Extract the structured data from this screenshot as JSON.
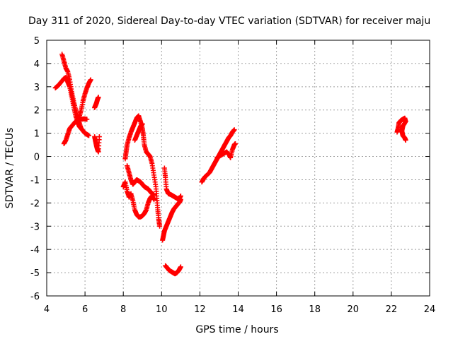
{
  "chart_data": {
    "type": "scatter",
    "title": "Day 311 of 2020, Sidereal Day-to-day VTEC variation (SDTVAR) for receiver maju",
    "xlabel": "GPS time / hours",
    "ylabel": "SDTVAR / TECUs",
    "xlim": [
      4,
      24
    ],
    "ylim": [
      -6,
      5
    ],
    "xticks": [
      4,
      6,
      8,
      10,
      12,
      14,
      16,
      18,
      20,
      22,
      24
    ],
    "yticks": [
      -6,
      -5,
      -4,
      -3,
      -2,
      -1,
      0,
      1,
      2,
      3,
      4,
      5
    ],
    "grid": true,
    "legend": "none",
    "marker": "+",
    "color": "#ff0000",
    "tracks": [
      [
        [
          4.45,
          2.95
        ],
        [
          4.6,
          3.05
        ],
        [
          4.75,
          3.2
        ],
        [
          4.9,
          3.35
        ],
        [
          5.0,
          3.4
        ],
        [
          5.1,
          3.2
        ],
        [
          5.2,
          3.0
        ],
        [
          5.3,
          2.6
        ],
        [
          5.4,
          2.2
        ],
        [
          5.5,
          1.8
        ],
        [
          5.6,
          1.5
        ],
        [
          5.7,
          1.3
        ],
        [
          5.8,
          1.2
        ],
        [
          5.9,
          1.1
        ],
        [
          6.0,
          1.0
        ],
        [
          6.1,
          0.95
        ],
        [
          6.2,
          0.9
        ]
      ],
      [
        [
          4.8,
          4.4
        ],
        [
          4.9,
          4.1
        ],
        [
          5.0,
          3.8
        ],
        [
          5.1,
          3.65
        ],
        [
          5.2,
          3.3
        ],
        [
          5.3,
          2.8
        ],
        [
          5.4,
          2.4
        ],
        [
          5.5,
          2.05
        ],
        [
          5.6,
          1.75
        ],
        [
          5.7,
          1.45
        ],
        [
          5.8,
          1.2
        ]
      ],
      [
        [
          4.9,
          0.55
        ],
        [
          5.0,
          0.7
        ],
        [
          5.1,
          0.95
        ],
        [
          5.2,
          1.2
        ],
        [
          5.35,
          1.35
        ],
        [
          5.5,
          1.5
        ],
        [
          5.65,
          1.55
        ],
        [
          5.8,
          1.6
        ],
        [
          5.95,
          1.62
        ],
        [
          6.1,
          1.6
        ]
      ],
      [
        [
          5.6,
          1.4
        ],
        [
          5.7,
          1.7
        ],
        [
          5.8,
          2.0
        ],
        [
          5.9,
          2.4
        ],
        [
          6.0,
          2.7
        ],
        [
          6.1,
          2.95
        ],
        [
          6.2,
          3.15
        ],
        [
          6.3,
          3.3
        ]
      ],
      [
        [
          6.5,
          2.1
        ],
        [
          6.55,
          2.2
        ],
        [
          6.6,
          2.3
        ],
        [
          6.65,
          2.45
        ],
        [
          6.7,
          2.55
        ]
      ],
      [
        [
          6.5,
          0.85
        ],
        [
          6.55,
          0.65
        ],
        [
          6.6,
          0.45
        ],
        [
          6.65,
          0.3
        ],
        [
          6.7,
          0.2
        ],
        [
          6.75,
          0.85
        ]
      ],
      [
        [
          8.1,
          -0.1
        ],
        [
          8.15,
          0.2
        ],
        [
          8.2,
          0.5
        ],
        [
          8.3,
          0.8
        ],
        [
          8.4,
          1.05
        ],
        [
          8.5,
          1.25
        ],
        [
          8.6,
          1.45
        ],
        [
          8.7,
          1.65
        ],
        [
          8.8,
          1.75
        ],
        [
          8.9,
          1.5
        ],
        [
          9.0,
          1.2
        ],
        [
          9.05,
          0.9
        ],
        [
          9.1,
          0.5
        ],
        [
          9.2,
          0.2
        ],
        [
          9.3,
          0.1
        ],
        [
          9.4,
          0.0
        ],
        [
          9.5,
          -0.3
        ],
        [
          9.6,
          -0.8
        ],
        [
          9.7,
          -1.3
        ],
        [
          9.75,
          -1.8
        ],
        [
          9.8,
          -2.3
        ],
        [
          9.85,
          -2.7
        ],
        [
          9.9,
          -3.0
        ]
      ],
      [
        [
          8.2,
          -0.4
        ],
        [
          8.3,
          -0.7
        ],
        [
          8.4,
          -1.0
        ],
        [
          8.5,
          -1.2
        ],
        [
          8.6,
          -1.1
        ],
        [
          8.7,
          -1.0
        ],
        [
          8.8,
          -1.05
        ],
        [
          8.9,
          -1.1
        ],
        [
          9.0,
          -1.2
        ],
        [
          9.1,
          -1.3
        ],
        [
          9.2,
          -1.35
        ],
        [
          9.3,
          -1.4
        ],
        [
          9.4,
          -1.5
        ],
        [
          9.5,
          -1.6
        ],
        [
          9.6,
          -1.65
        ]
      ],
      [
        [
          8.0,
          -1.3
        ],
        [
          8.1,
          -1.1
        ],
        [
          8.2,
          -1.5
        ],
        [
          8.3,
          -1.75
        ],
        [
          8.4,
          -1.6
        ],
        [
          8.5,
          -1.9
        ],
        [
          8.6,
          -2.3
        ],
        [
          8.7,
          -2.5
        ],
        [
          8.8,
          -2.6
        ],
        [
          8.9,
          -2.6
        ],
        [
          9.0,
          -2.55
        ],
        [
          9.1,
          -2.45
        ],
        [
          9.2,
          -2.3
        ],
        [
          9.3,
          -2.0
        ],
        [
          9.4,
          -1.8
        ],
        [
          9.5,
          -1.7
        ],
        [
          9.6,
          -1.85
        ]
      ],
      [
        [
          8.6,
          0.7
        ],
        [
          8.7,
          0.9
        ],
        [
          8.8,
          1.1
        ],
        [
          8.9,
          1.3
        ],
        [
          9.0,
          1.4
        ]
      ],
      [
        [
          10.15,
          -0.5
        ],
        [
          10.2,
          -0.9
        ],
        [
          10.25,
          -1.4
        ],
        [
          10.35,
          -1.6
        ],
        [
          10.5,
          -1.65
        ],
        [
          10.6,
          -1.7
        ],
        [
          10.7,
          -1.75
        ],
        [
          10.8,
          -1.8
        ],
        [
          10.9,
          -1.85
        ],
        [
          11.0,
          -1.7
        ]
      ],
      [
        [
          10.05,
          -3.6
        ],
        [
          10.1,
          -3.4
        ],
        [
          10.15,
          -3.2
        ],
        [
          10.25,
          -3.0
        ],
        [
          10.35,
          -2.8
        ],
        [
          10.45,
          -2.6
        ],
        [
          10.55,
          -2.4
        ],
        [
          10.65,
          -2.25
        ],
        [
          10.75,
          -2.15
        ],
        [
          10.85,
          -2.05
        ],
        [
          10.95,
          -1.95
        ],
        [
          11.0,
          -1.85
        ]
      ],
      [
        [
          10.2,
          -4.7
        ],
        [
          10.3,
          -4.8
        ],
        [
          10.4,
          -4.9
        ],
        [
          10.5,
          -4.95
        ],
        [
          10.6,
          -5.0
        ],
        [
          10.7,
          -5.05
        ],
        [
          10.8,
          -5.0
        ],
        [
          10.9,
          -4.9
        ],
        [
          11.0,
          -4.75
        ]
      ],
      [
        [
          12.1,
          -1.1
        ],
        [
          12.2,
          -0.95
        ],
        [
          12.3,
          -0.85
        ],
        [
          12.5,
          -0.7
        ],
        [
          12.6,
          -0.55
        ],
        [
          12.7,
          -0.4
        ],
        [
          12.8,
          -0.25
        ],
        [
          12.9,
          -0.1
        ],
        [
          13.0,
          0.05
        ],
        [
          13.1,
          0.2
        ],
        [
          13.2,
          0.35
        ],
        [
          13.3,
          0.5
        ],
        [
          13.4,
          0.65
        ],
        [
          13.5,
          0.8
        ],
        [
          13.6,
          0.9
        ],
        [
          13.7,
          1.05
        ],
        [
          13.8,
          1.15
        ]
      ],
      [
        [
          12.9,
          -0.05
        ],
        [
          13.0,
          0.0
        ],
        [
          13.2,
          0.1
        ],
        [
          13.4,
          0.2
        ],
        [
          13.55,
          0.05
        ],
        [
          13.6,
          -0.05
        ],
        [
          13.7,
          0.3
        ],
        [
          13.8,
          0.5
        ],
        [
          13.85,
          0.55
        ]
      ],
      [
        [
          22.3,
          1.05
        ],
        [
          22.35,
          1.2
        ],
        [
          22.4,
          1.45
        ],
        [
          22.5,
          1.55
        ],
        [
          22.6,
          1.6
        ],
        [
          22.7,
          1.65
        ],
        [
          22.75,
          1.5
        ],
        [
          22.6,
          1.3
        ],
        [
          22.55,
          1.1
        ],
        [
          22.6,
          0.9
        ],
        [
          22.7,
          0.8
        ],
        [
          22.75,
          0.7
        ]
      ]
    ]
  }
}
